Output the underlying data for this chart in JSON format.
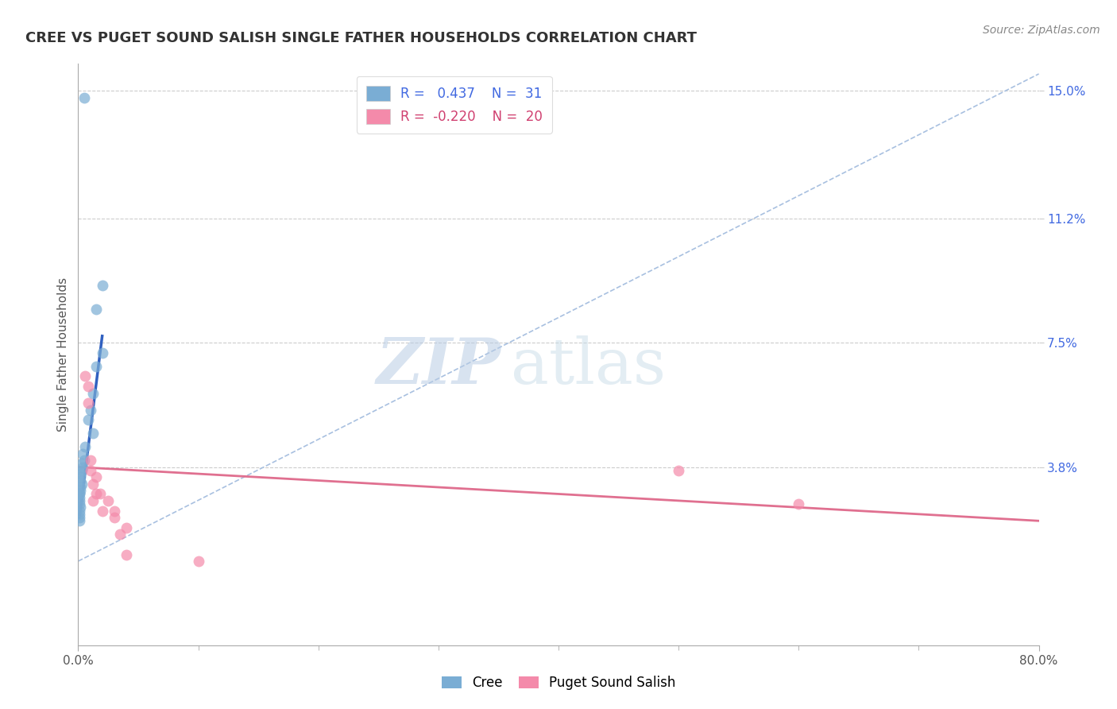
{
  "title": "CREE VS PUGET SOUND SALISH SINGLE FATHER HOUSEHOLDS CORRELATION CHART",
  "source": "Source: ZipAtlas.com",
  "ylabel": "Single Father Households",
  "y_tick_labels_right": [
    "15.0%",
    "11.2%",
    "7.5%",
    "3.8%"
  ],
  "y_tick_values_right": [
    0.15,
    0.112,
    0.075,
    0.038
  ],
  "x_min": 0.0,
  "x_max": 0.8,
  "y_min": -0.015,
  "y_max": 0.158,
  "cree_color": "#7aadd4",
  "pink_color": "#f48aaa",
  "dashed_line_color": "#a8c0e0",
  "blue_line_color": "#3060c0",
  "pink_line_color": "#e07090",
  "watermark_zip_color": "#c8d8ec",
  "watermark_atlas_color": "#c8d8ec",
  "cree_scatter": [
    [
      0.005,
      0.148
    ],
    [
      0.02,
      0.092
    ],
    [
      0.015,
      0.085
    ],
    [
      0.02,
      0.072
    ],
    [
      0.015,
      0.068
    ],
    [
      0.012,
      0.06
    ],
    [
      0.01,
      0.055
    ],
    [
      0.008,
      0.052
    ],
    [
      0.012,
      0.048
    ],
    [
      0.006,
      0.044
    ],
    [
      0.004,
      0.042
    ],
    [
      0.005,
      0.04
    ],
    [
      0.003,
      0.039
    ],
    [
      0.004,
      0.038
    ],
    [
      0.003,
      0.037
    ],
    [
      0.002,
      0.036
    ],
    [
      0.002,
      0.035
    ],
    [
      0.002,
      0.034
    ],
    [
      0.003,
      0.033
    ],
    [
      0.002,
      0.032
    ],
    [
      0.002,
      0.031
    ],
    [
      0.001,
      0.03
    ],
    [
      0.001,
      0.03
    ],
    [
      0.001,
      0.029
    ],
    [
      0.001,
      0.028
    ],
    [
      0.001,
      0.027
    ],
    [
      0.002,
      0.026
    ],
    [
      0.001,
      0.025
    ],
    [
      0.001,
      0.024
    ],
    [
      0.001,
      0.023
    ],
    [
      0.001,
      0.022
    ]
  ],
  "puget_scatter": [
    [
      0.006,
      0.065
    ],
    [
      0.008,
      0.062
    ],
    [
      0.008,
      0.057
    ],
    [
      0.01,
      0.04
    ],
    [
      0.01,
      0.037
    ],
    [
      0.012,
      0.033
    ],
    [
      0.012,
      0.028
    ],
    [
      0.015,
      0.035
    ],
    [
      0.015,
      0.03
    ],
    [
      0.018,
      0.03
    ],
    [
      0.02,
      0.025
    ],
    [
      0.025,
      0.028
    ],
    [
      0.03,
      0.025
    ],
    [
      0.03,
      0.023
    ],
    [
      0.035,
      0.018
    ],
    [
      0.04,
      0.012
    ],
    [
      0.5,
      0.037
    ],
    [
      0.6,
      0.027
    ],
    [
      0.04,
      0.02
    ],
    [
      0.1,
      0.01
    ]
  ],
  "cree_line_solid": [
    [
      0.001,
      0.023
    ],
    [
      0.02,
      0.077
    ]
  ],
  "cree_line_dashed": [
    [
      0.0,
      0.01
    ],
    [
      0.8,
      0.155
    ]
  ],
  "puget_line": [
    [
      0.0,
      0.038
    ],
    [
      0.8,
      0.022
    ]
  ]
}
